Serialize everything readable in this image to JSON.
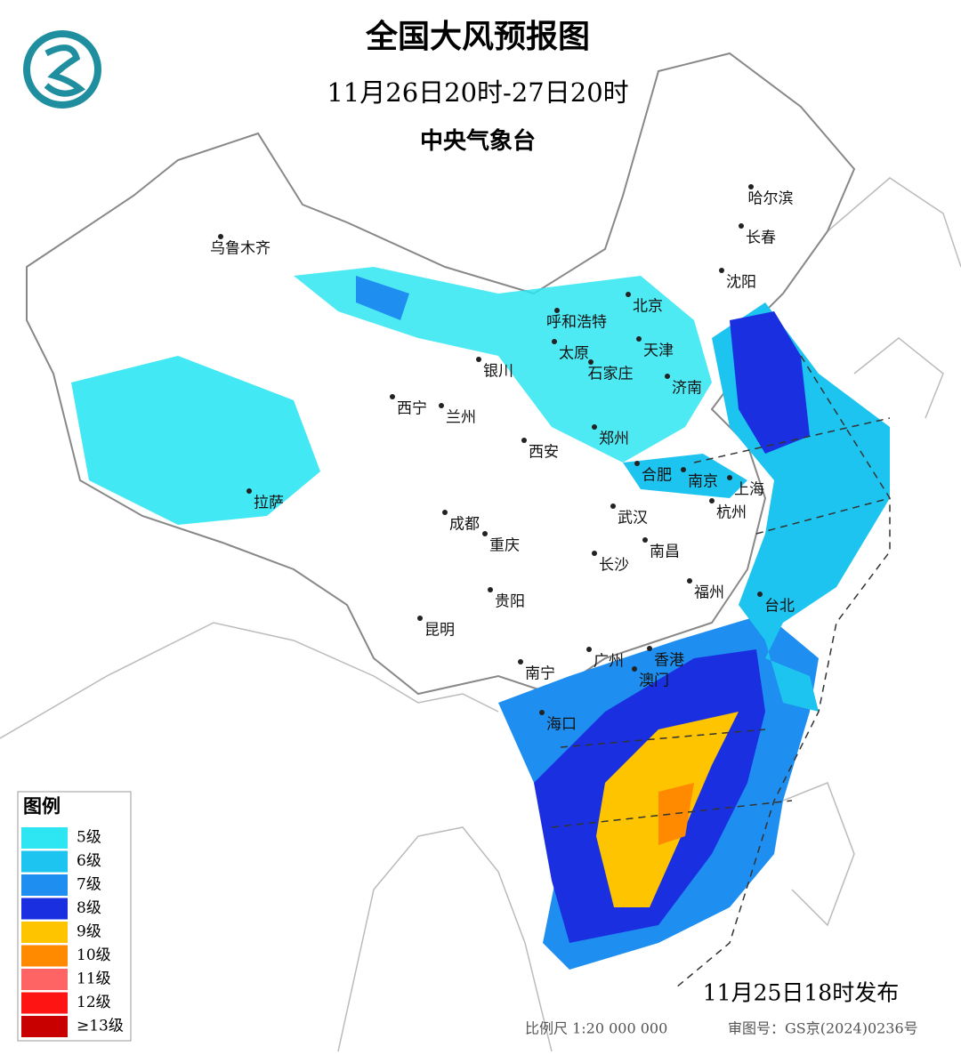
{
  "header": {
    "title": "全国大风预报图",
    "period": "11月26日20时-27日20时",
    "issuer": "中央气象台"
  },
  "cities": [
    "乌鲁木齐",
    "呼和浩特",
    "北京",
    "天津",
    "哈尔滨",
    "长春",
    "沈阳",
    "银川",
    "太原",
    "石家庄",
    "济南",
    "西宁",
    "兰州",
    "郑州",
    "西安",
    "合肥",
    "南京",
    "上海",
    "杭州",
    "拉萨",
    "成都",
    "武汉",
    "重庆",
    "南昌",
    "长沙",
    "福州",
    "贵阳",
    "台北",
    "昆明",
    "南宁",
    "广州",
    "香港",
    "澳门",
    "海口"
  ],
  "legend": {
    "title": "图例",
    "items": [
      {
        "label": "5级",
        "color": "#2ee6f2"
      },
      {
        "label": "6级",
        "color": "#1ec4f0"
      },
      {
        "label": "7级",
        "color": "#1e8ff0"
      },
      {
        "label": "8级",
        "color": "#1a30e0"
      },
      {
        "label": "9级",
        "color": "#ffc400"
      },
      {
        "label": "10级",
        "color": "#ff8a00"
      },
      {
        "label": "11级",
        "color": "#ff6464"
      },
      {
        "label": "12级",
        "color": "#ff1414"
      },
      {
        "label": "≥13级",
        "color": "#c80000"
      }
    ]
  },
  "footer": {
    "release": "11月25日18时发布",
    "scale": "比例尺 1:20 000 000",
    "approval": "审图号：GS京(2024)0236号"
  }
}
